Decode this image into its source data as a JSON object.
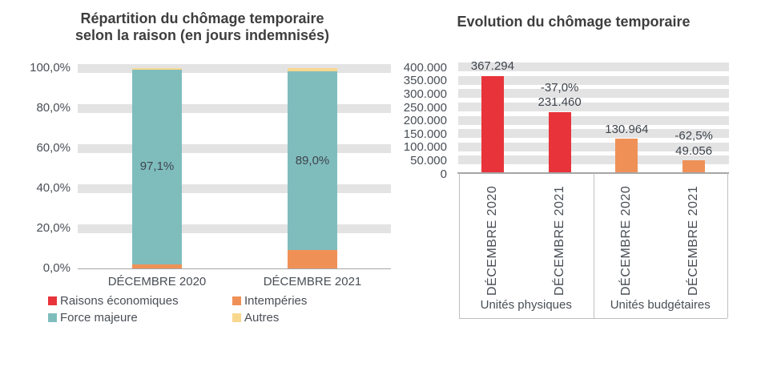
{
  "page": {
    "background": "#FFFFFF"
  },
  "palette": {
    "red": "#E8333A",
    "orange": "#EF9157",
    "teal": "#7FBDBD",
    "yellow": "#F8D88F",
    "gridline_gray": "#E3E3E3",
    "axis_gray": "#A6A6A6",
    "box_border_gray": "#BFBFBF",
    "text_dark": "#494E55",
    "title_gray": "#3E3E3E"
  },
  "chart_data": [
    {
      "type": "stacked-bar-100",
      "title": "Répartition du chômage temporaire selon la raison (en jours indemnisés)",
      "title_lines": [
        "Répartition du chômage temporaire",
        "selon la raison (en jours indemnisés)"
      ],
      "categories": [
        "DÉCEMBRE 2020",
        "DÉCEMBRE 2021"
      ],
      "series": [
        {
          "name": "Raisons économiques",
          "color": "#E8333A",
          "values": [
            0.1,
            0.1
          ]
        },
        {
          "name": "Intempéries",
          "color": "#EF9157",
          "values": [
            2.0,
            9.2
          ]
        },
        {
          "name": "Force majeure",
          "color": "#7FBDBD",
          "values": [
            97.1,
            89.0
          ]
        },
        {
          "name": "Autres",
          "color": "#F8D88F",
          "values": [
            0.8,
            1.7
          ]
        }
      ],
      "bar_labels": [
        "97,1%",
        "89,0%"
      ],
      "y_axis": {
        "tick_labels": [
          "100,0%",
          "80,0%",
          "60,0%",
          "40,0%",
          "20,0%",
          "0,0%"
        ],
        "tick_values": [
          100,
          80,
          60,
          40,
          20,
          0
        ],
        "range": [
          0,
          100
        ],
        "unit": "%"
      },
      "legend": {
        "position": "bottom",
        "columns": 2,
        "entries": [
          "Raisons économiques",
          "Intempéries",
          "Force majeure",
          "Autres"
        ]
      },
      "gridlines": "thick-gray-bands"
    },
    {
      "type": "bar",
      "title": "Evolution du chômage temporaire",
      "groups": [
        {
          "label": "Unités physiques",
          "bars": [
            {
              "category": "DÉCEMBRE 2020",
              "value": 367294,
              "value_label": "367.294",
              "color": "#E8333A"
            },
            {
              "category": "DÉCEMBRE 2021",
              "value": 231460,
              "value_label": "231.460",
              "change_label": "-37,0%",
              "color": "#E8333A"
            }
          ]
        },
        {
          "label": "Unités budgétaires",
          "bars": [
            {
              "category": "DÉCEMBRE 2020",
              "value": 130964,
              "value_label": "130.964",
              "color": "#EF9157"
            },
            {
              "category": "DÉCEMBRE 2021",
              "value": 49056,
              "value_label": "49.056",
              "change_label": "-62,5%",
              "color": "#EF9157"
            }
          ]
        }
      ],
      "y_axis": {
        "tick_labels": [
          "400.000",
          "350.000",
          "300.000",
          "250.000",
          "200.000",
          "150.000",
          "100.000",
          "50.000",
          "0"
        ],
        "tick_values": [
          400000,
          350000,
          300000,
          250000,
          200000,
          150000,
          100000,
          50000,
          0
        ],
        "range": [
          0,
          400000
        ]
      },
      "legend": {
        "position": "none"
      },
      "gridlines": "thick-gray-bands"
    }
  ]
}
